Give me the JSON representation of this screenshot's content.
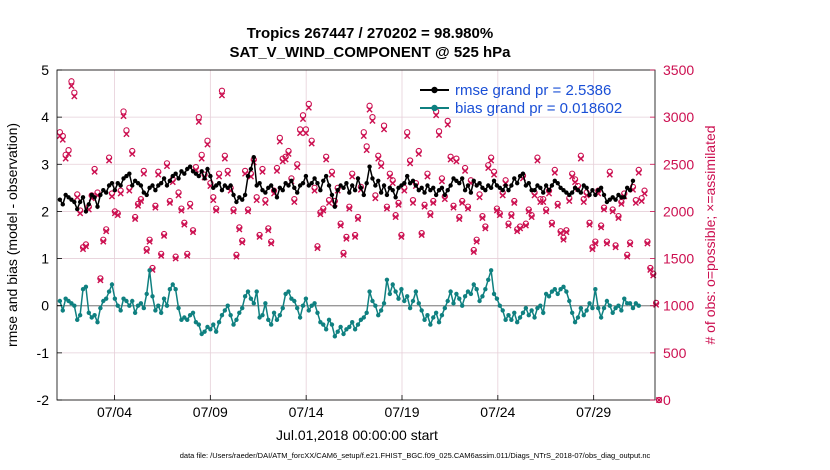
{
  "chart_data": {
    "type": "line",
    "title": "Tropics 267447 / 270202 = 98.980%",
    "subtitle": "SAT_V_WIND_COMPONENT @ 525 hPa",
    "xlabel": "Jul.01,2018 00:00:00 start",
    "ylabel_left": "rmse and bias (model - observation)",
    "ylabel_right": "# of obs: o=possible; ×=assimilated",
    "footer": "data file: /Users/raeder/DAI/ATM_forcXX/CAM6_setup/f.e21.FHIST_BGC.f09_025.CAM6assim.011/Diags_NTrS_2018-07/obs_diag_output.nc",
    "x_range_days": [
      1.0,
      32.2
    ],
    "ylim_left": [
      -2,
      5
    ],
    "ylim_right": [
      0,
      3500
    ],
    "grid": true,
    "x_ticks": [
      {
        "x": 4,
        "label": "07/04"
      },
      {
        "x": 9,
        "label": "07/09"
      },
      {
        "x": 14,
        "label": "07/14"
      },
      {
        "x": 19,
        "label": "07/19"
      },
      {
        "x": 24,
        "label": "07/24"
      },
      {
        "x": 29,
        "label": "07/29"
      }
    ],
    "y_left_ticks": [
      -2,
      -1,
      0,
      1,
      2,
      3,
      4,
      5
    ],
    "y_right_ticks": [
      0,
      500,
      1000,
      1500,
      2000,
      2500,
      3000,
      3500
    ],
    "colors": {
      "rmse": "#000000",
      "bias": "#0f8080",
      "obs": "#cc0f50",
      "zero_line": "#999999",
      "legend_text": "#1a4fd6",
      "grid": "#e6cfd8"
    },
    "legend": [
      {
        "name": "rmse grand pr = 2.5386",
        "series": "rmse"
      },
      {
        "name": "bias grand pr = 0.018602",
        "series": "bias"
      }
    ],
    "series": [
      {
        "name": "rmse",
        "axis": "left",
        "values": [
          2.25,
          2.15,
          2.35,
          2.3,
          2.25,
          2.2,
          2.05,
          2.2,
          2.3,
          2.0,
          2.15,
          2.35,
          2.3,
          2.1,
          2.35,
          2.45,
          2.4,
          2.55,
          2.6,
          2.45,
          2.6,
          2.55,
          2.7,
          2.75,
          2.8,
          2.55,
          2.65,
          2.6,
          2.55,
          2.4,
          2.35,
          2.5,
          2.55,
          2.45,
          2.55,
          2.6,
          2.7,
          2.55,
          2.65,
          2.75,
          2.8,
          2.7,
          2.85,
          2.8,
          2.9,
          2.95,
          2.85,
          2.8,
          2.75,
          2.85,
          2.7,
          2.9,
          2.75,
          2.5,
          2.55,
          2.6,
          2.45,
          2.55,
          2.5,
          2.55,
          2.35,
          2.2,
          2.3,
          2.25,
          2.35,
          2.75,
          2.9,
          3.15,
          2.55,
          2.6,
          2.45,
          2.4,
          2.5,
          2.55,
          2.45,
          2.3,
          2.5,
          2.45,
          2.6,
          2.55,
          2.65,
          2.5,
          2.4,
          2.55,
          2.6,
          2.75,
          2.55,
          2.6,
          2.7,
          2.6,
          2.45,
          2.65,
          2.75,
          2.55,
          2.35,
          2.1,
          2.45,
          2.55,
          2.5,
          2.6,
          2.4,
          2.55,
          2.45,
          2.7,
          2.5,
          2.35,
          2.6,
          2.95,
          2.7,
          2.55,
          2.65,
          2.4,
          2.55,
          2.35,
          2.5,
          2.45,
          2.3,
          2.5,
          2.55,
          2.6,
          2.75,
          2.6,
          2.65,
          2.55,
          2.45,
          2.5,
          2.4,
          2.55,
          2.45,
          2.5,
          2.35,
          2.45,
          2.5,
          2.35,
          2.45,
          2.55,
          2.7,
          2.65,
          2.6,
          2.7,
          2.45,
          2.55,
          2.4,
          2.65,
          2.55,
          2.6,
          2.5,
          2.45,
          2.55,
          2.5,
          2.65,
          2.55,
          2.5,
          2.45,
          2.55,
          2.45,
          2.55,
          2.7,
          2.6,
          2.75,
          2.8,
          2.55,
          2.6,
          2.45,
          2.45,
          2.55,
          2.5,
          2.4,
          2.55,
          2.45,
          2.55,
          2.65,
          2.6,
          2.5,
          2.45,
          2.4,
          2.35,
          2.4,
          2.5,
          2.45,
          2.4,
          2.55,
          2.5,
          2.35,
          2.45,
          2.35,
          2.45,
          2.5,
          2.35,
          2.2,
          2.25,
          2.3,
          2.25,
          2.35,
          2.3,
          2.3,
          2.5,
          2.45,
          2.65
        ]
      },
      {
        "name": "bias",
        "axis": "left",
        "values": [
          0.1,
          -0.1,
          0.15,
          0.1,
          0.05,
          0.0,
          -0.3,
          -0.2,
          0.35,
          0.4,
          -0.15,
          -0.25,
          -0.2,
          -0.35,
          -0.05,
          0.1,
          0.15,
          0.3,
          0.45,
          0.15,
          0.0,
          -0.1,
          0.15,
          0.1,
          0.0,
          0.1,
          -0.15,
          0.0,
          0.05,
          -0.05,
          0.25,
          0.75,
          0.2,
          -0.1,
          0.0,
          -0.15,
          0.15,
          0.0,
          0.35,
          0.45,
          0.35,
          -0.05,
          -0.3,
          -0.25,
          -0.3,
          -0.2,
          -0.15,
          -0.35,
          -0.4,
          -0.6,
          -0.55,
          -0.45,
          -0.5,
          -0.4,
          -0.55,
          -0.35,
          -0.2,
          -0.1,
          0.0,
          -0.2,
          -0.4,
          -0.3,
          -0.15,
          -0.05,
          0.2,
          0.3,
          0.15,
          0.05,
          0.3,
          -0.25,
          -0.2,
          0.05,
          -0.3,
          -0.4,
          -0.15,
          -0.3,
          -0.2,
          -0.05,
          0.25,
          0.3,
          0.15,
          0.1,
          -0.05,
          -0.25,
          0.0,
          0.15,
          -0.1,
          0.0,
          0.05,
          -0.15,
          -0.35,
          -0.4,
          -0.5,
          -0.3,
          -0.4,
          -0.65,
          -0.55,
          -0.45,
          -0.6,
          -0.5,
          -0.45,
          -0.35,
          -0.5,
          -0.4,
          -0.3,
          -0.25,
          -0.15,
          0.3,
          0.1,
          0.0,
          -0.2,
          -0.1,
          0.05,
          0.55,
          0.25,
          0.45,
          0.3,
          0.15,
          0.35,
          0.1,
          0.2,
          -0.05,
          0.1,
          0.3,
          0.05,
          -0.1,
          -0.3,
          -0.2,
          -0.4,
          -0.25,
          -0.15,
          -0.35,
          -0.2,
          -0.05,
          0.1,
          0.3,
          0.05,
          0.25,
          0.15,
          0.0,
          0.2,
          0.3,
          0.25,
          0.45,
          0.35,
          0.1,
          0.2,
          0.35,
          0.55,
          0.75,
          0.25,
          0.15,
          0.0,
          -0.1,
          -0.3,
          -0.2,
          -0.3,
          -0.15,
          -0.35,
          -0.25,
          -0.15,
          -0.05,
          -0.2,
          -0.1,
          -0.25,
          -0.05,
          0.0,
          -0.15,
          0.25,
          0.2,
          0.3,
          0.35,
          0.25,
          0.35,
          0.4,
          0.3,
          0.1,
          -0.15,
          -0.35,
          -0.25,
          -0.05,
          -0.2,
          -0.1,
          0.05,
          -0.05,
          0.35,
          -0.05,
          -0.25,
          -0.05,
          0.1,
          0.0,
          -0.15,
          -0.05,
          0.0,
          -0.1,
          0.15,
          0.05,
          0.05,
          -0.05,
          0.05,
          0.0
        ]
      },
      {
        "name": "obs_possible",
        "axis": "right",
        "values": [
          2840,
          2800,
          2600,
          2650,
          3380,
          3260,
          2180,
          2010,
          1620,
          1650,
          2050,
          2170,
          2450,
          2200,
          1290,
          1700,
          1810,
          2570,
          2190,
          2000,
          1980,
          2220,
          3060,
          2860,
          2250,
          2640,
          1940,
          2080,
          2130,
          2430,
          1600,
          1700,
          1400,
          2060,
          2420,
          1550,
          1760,
          2510,
          2110,
          2340,
          1520,
          2200,
          2030,
          1880,
          1550,
          2080,
          1800,
          2470,
          3000,
          2600,
          2390,
          2750,
          2300,
          2150,
          2030,
          2400,
          3280,
          2590,
          2430,
          2250,
          2020,
          1540,
          1830,
          1690,
          2430,
          2020,
          2400,
          2550,
          2150,
          1750,
          2450,
          2120,
          1820,
          1680,
          2220,
          2460,
          2780,
          2560,
          2580,
          2640,
          2350,
          2130,
          2500,
          2870,
          3020,
          2870,
          3140,
          2750,
          2250,
          1630,
          1990,
          2030,
          2580,
          2120,
          2420,
          2110,
          2250,
          1870,
          1560,
          1730,
          2050,
          2400,
          1750,
          1940,
          2260,
          2840,
          2690,
          3120,
          3000,
          2170,
          2590,
          2510,
          2910,
          2050,
          2400,
          2330,
          1960,
          2090,
          1750,
          2250,
          2840,
          2540,
          2120,
          2300,
          2640,
          1770,
          2070,
          2400,
          1980,
          2110,
          3060,
          2850,
          2350,
          2160,
          2960,
          2580,
          2060,
          2560,
          1940,
          2110,
          2460,
          2050,
          2330,
          1590,
          1700,
          2180,
          1950,
          1840,
          2490,
          2570,
          2420,
          2030,
          1980,
          2200,
          2330,
          1870,
          1970,
          2110,
          1810,
          1840,
          2380,
          1870,
          2020,
          1960,
          2200,
          2570,
          2130,
          2130,
          2020,
          2220,
          1880,
          2440,
          2080,
          1790,
          1720,
          1800,
          2140,
          2400,
          2340,
          2270,
          2590,
          2130,
          2200,
          1880,
          1620,
          1680,
          2220,
          1850,
          2040,
          1680,
          2420,
          2020,
          1640,
          1950,
          2100,
          2190,
          1540,
          1670,
          2260,
          2120,
          2440,
          2140,
          2220,
          1680,
          1400,
          1340,
          1030,
          0
        ]
      },
      {
        "name": "obs_assimilated",
        "axis": "right",
        "values": [
          2800,
          2760,
          2560,
          2610,
          3330,
          3220,
          2150,
          1980,
          1600,
          1630,
          2020,
          2140,
          2420,
          2170,
          1270,
          1680,
          1790,
          2540,
          2160,
          1980,
          1960,
          2190,
          3010,
          2820,
          2220,
          2610,
          1920,
          2060,
          2110,
          2400,
          1580,
          1680,
          1380,
          2040,
          2390,
          1530,
          1740,
          2480,
          2090,
          2310,
          1500,
          2170,
          2010,
          1860,
          1530,
          2050,
          1780,
          2440,
          2950,
          2560,
          2360,
          2710,
          2270,
          2120,
          2010,
          2370,
          3230,
          2560,
          2400,
          2220,
          2000,
          1520,
          1810,
          1670,
          2400,
          2000,
          2370,
          2520,
          2120,
          1730,
          2420,
          2090,
          1800,
          1660,
          2190,
          2430,
          2740,
          2530,
          2550,
          2610,
          2320,
          2100,
          2470,
          2830,
          2980,
          2830,
          3100,
          2720,
          2220,
          1610,
          1970,
          2010,
          2550,
          2090,
          2390,
          2080,
          2220,
          1850,
          1540,
          1710,
          2030,
          2370,
          1730,
          1920,
          2230,
          2800,
          2650,
          3080,
          2960,
          2140,
          2560,
          2480,
          2870,
          2030,
          2370,
          2300,
          1940,
          2070,
          1730,
          2220,
          2800,
          2510,
          2090,
          2270,
          2610,
          1750,
          2050,
          2370,
          1960,
          2090,
          3020,
          2810,
          2320,
          2130,
          2920,
          2550,
          2040,
          2530,
          1920,
          2090,
          2430,
          2030,
          2300,
          1570,
          1680,
          2150,
          1930,
          1820,
          2460,
          2540,
          2390,
          2010,
          1960,
          2170,
          2300,
          1850,
          1950,
          2090,
          1790,
          1820,
          2350,
          1850,
          2000,
          1940,
          2170,
          2540,
          2100,
          2100,
          2000,
          2190,
          1860,
          2410,
          2060,
          1770,
          1700,
          1780,
          2110,
          2370,
          2310,
          2240,
          2560,
          2100,
          2170,
          1860,
          1600,
          1660,
          2190,
          1830,
          2020,
          1660,
          2390,
          2000,
          1620,
          1930,
          2080,
          2160,
          1520,
          1650,
          2230,
          2090,
          2410,
          2110,
          2190,
          1660,
          1380,
          1320,
          1010,
          0
        ]
      }
    ]
  }
}
